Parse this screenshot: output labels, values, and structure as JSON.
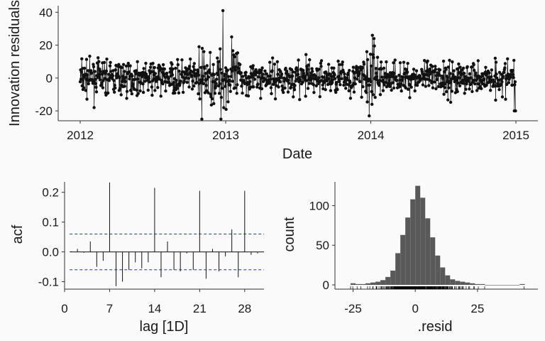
{
  "chart_data": [
    {
      "type": "line",
      "xlabel": "Date",
      "ylabel": "Innovation residuals",
      "x_ticks": [
        "2012",
        "2013",
        "2014",
        "2015"
      ],
      "y_ticks": [
        -20,
        0,
        20,
        40
      ],
      "xlim": [
        "2012-01-01",
        "2015-01-01"
      ],
      "ylim": [
        -26,
        44
      ],
      "series": [
        {
          "values_note": "daily innovation residuals, 2012-01-01 to 2014-12-31",
          "marker": "point",
          "line": true,
          "extremes": [
            {
              "date": "2012-10-26",
              "value": 19
            },
            {
              "date": "2012-11-02",
              "value": -25
            },
            {
              "date": "2012-12-20",
              "value": -25
            },
            {
              "date": "2012-12-25",
              "value": 41
            },
            {
              "date": "2013-01-16",
              "value": 25
            },
            {
              "date": "2013-12-28",
              "value": -23
            },
            {
              "date": "2014-01-05",
              "value": 26
            },
            {
              "date": "2014-01-09",
              "value": 24
            },
            {
              "date": "2014-12-28",
              "value": -20
            },
            {
              "date": "2014-12-31",
              "value": -20
            }
          ]
        }
      ]
    },
    {
      "type": "bar",
      "xlabel": "lag [1D]",
      "ylabel": "acf",
      "x_ticks": [
        0,
        7,
        14,
        21,
        28
      ],
      "y_ticks": [
        "-0.1",
        "0.0",
        "0.1",
        "0.2"
      ],
      "xlim": [
        0,
        31
      ],
      "ylim": [
        -0.125,
        0.235
      ],
      "ci": [
        0.06,
        -0.06
      ],
      "lags": [
        1,
        2,
        3,
        4,
        5,
        6,
        7,
        8,
        9,
        10,
        11,
        12,
        13,
        14,
        15,
        16,
        17,
        18,
        19,
        20,
        21,
        22,
        23,
        24,
        25,
        26,
        27,
        28,
        29,
        30
      ],
      "values": [
        0.002,
        0.01,
        -0.003,
        0.035,
        -0.05,
        -0.03,
        0.233,
        -0.115,
        -0.1,
        -0.06,
        -0.035,
        -0.055,
        -0.035,
        0.215,
        -0.085,
        0.035,
        -0.06,
        -0.065,
        -0.005,
        -0.06,
        0.205,
        -0.09,
        0.01,
        -0.065,
        -0.015,
        0.075,
        -0.085,
        0.205,
        -0.01,
        -0.005
      ]
    },
    {
      "type": "bar",
      "xlabel": ".resid",
      "ylabel": "count",
      "x_ticks": [
        -25,
        0,
        25
      ],
      "y_ticks": [
        0,
        50,
        100
      ],
      "xlim": [
        -28,
        45
      ],
      "ylim": [
        0,
        130
      ],
      "bins": [
        -26,
        -24,
        -22,
        -20,
        -18,
        -16,
        -14,
        -12,
        -10,
        -8,
        -6,
        -4,
        -2,
        0,
        2,
        4,
        6,
        8,
        10,
        12,
        14,
        16,
        18,
        20,
        22,
        24,
        26,
        28,
        30,
        32,
        34,
        36,
        38,
        40,
        42
      ],
      "bin_width": 2,
      "values": [
        2,
        1,
        1,
        2,
        3,
        4,
        6,
        10,
        18,
        40,
        63,
        85,
        108,
        125,
        110,
        84,
        60,
        37,
        22,
        12,
        7,
        5,
        4,
        3,
        2,
        1,
        1,
        0,
        0,
        0,
        0,
        0,
        0,
        0,
        1
      ],
      "rug": true
    }
  ]
}
